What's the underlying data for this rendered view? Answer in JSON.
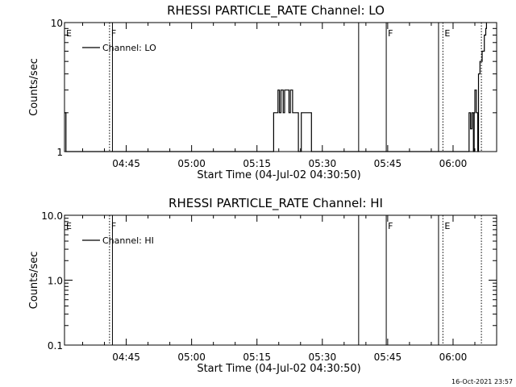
{
  "footer": "16-Oct-2021 23:57",
  "chart_data": [
    {
      "type": "line",
      "title": "RHESSI PARTICLE_RATE Channel: LO",
      "xlabel": "Start Time (04-Jul-02 04:30:50)",
      "ylabel": "Counts/sec",
      "yscale": "log",
      "ylim": [
        1,
        10
      ],
      "yticks": [
        1,
        10
      ],
      "ytick_labels": [
        "1",
        "10"
      ],
      "xlim": [
        "04:30:50",
        "06:10:00"
      ],
      "xticks": [
        "04:45",
        "05:00",
        "05:15",
        "05:30",
        "05:45",
        "06:00"
      ],
      "legend": "Channel: LO",
      "legend_position": "top-left",
      "series": [
        {
          "name": "Channel: LO",
          "points": [
            [
              "04:30:50",
              2
            ],
            [
              "04:31:10",
              1
            ],
            [
              "05:18:40",
              1
            ],
            [
              "05:18:50",
              2
            ],
            [
              "05:19:30",
              2
            ],
            [
              "05:19:50",
              3
            ],
            [
              "05:20:10",
              2
            ],
            [
              "05:20:30",
              3
            ],
            [
              "05:21:00",
              2
            ],
            [
              "05:21:20",
              3
            ],
            [
              "05:22:00",
              3
            ],
            [
              "05:22:20",
              2
            ],
            [
              "05:22:40",
              3
            ],
            [
              "05:23:10",
              2
            ],
            [
              "05:24:10",
              2
            ],
            [
              "05:24:30",
              1
            ],
            [
              "05:25:00",
              1
            ],
            [
              "05:25:10",
              2
            ],
            [
              "05:27:10",
              2
            ],
            [
              "05:27:30",
              1
            ],
            [
              "06:03:30",
              1
            ],
            [
              "06:03:40",
              2
            ],
            [
              "06:04:00",
              1.5
            ],
            [
              "06:04:20",
              2
            ],
            [
              "06:04:40",
              1
            ],
            [
              "06:04:50",
              2
            ],
            [
              "06:05:00",
              3
            ],
            [
              "06:05:20",
              2
            ],
            [
              "06:05:40",
              1
            ],
            [
              "06:05:50",
              4
            ],
            [
              "06:06:10",
              5
            ],
            [
              "06:06:40",
              6
            ],
            [
              "06:07:10",
              8
            ],
            [
              "06:07:30",
              9
            ],
            [
              "06:07:40",
              10
            ]
          ]
        }
      ],
      "markers": [
        {
          "label": "E",
          "time": "04:30:50",
          "style": "none"
        },
        {
          "label": "F",
          "time": "04:41:10",
          "style": "dotted"
        },
        {
          "label": "",
          "time": "04:41:50",
          "style": "solid"
        },
        {
          "label": "",
          "time": "05:38:20",
          "style": "solid"
        },
        {
          "label": "F",
          "time": "05:44:40",
          "style": "solid"
        },
        {
          "label": "",
          "time": "05:56:40",
          "style": "solid"
        },
        {
          "label": "E",
          "time": "05:57:40",
          "style": "dotted"
        },
        {
          "label": "",
          "time": "06:06:30",
          "style": "dotted"
        }
      ]
    },
    {
      "type": "line",
      "title": "RHESSI PARTICLE_RATE Channel: HI",
      "xlabel": "Start Time (04-Jul-02 04:30:50)",
      "ylabel": "Counts/sec",
      "yscale": "log",
      "ylim": [
        0.1,
        10
      ],
      "yticks": [
        0.1,
        1,
        10
      ],
      "ytick_labels": [
        "0.1",
        "1.0",
        "10.0"
      ],
      "xlim": [
        "04:30:50",
        "06:10:00"
      ],
      "xticks": [
        "04:45",
        "05:00",
        "05:15",
        "05:30",
        "05:45",
        "06:00"
      ],
      "legend": "Channel: HI",
      "legend_position": "top-left",
      "series": [
        {
          "name": "Channel: HI",
          "points": []
        }
      ],
      "markers": [
        {
          "label": "E",
          "time": "04:30:50",
          "style": "none"
        },
        {
          "label": "F",
          "time": "04:41:10",
          "style": "dotted"
        },
        {
          "label": "",
          "time": "04:41:50",
          "style": "solid"
        },
        {
          "label": "",
          "time": "05:38:20",
          "style": "solid"
        },
        {
          "label": "F",
          "time": "05:44:40",
          "style": "solid"
        },
        {
          "label": "",
          "time": "05:56:40",
          "style": "solid"
        },
        {
          "label": "E",
          "time": "05:57:40",
          "style": "dotted"
        },
        {
          "label": "",
          "time": "06:06:30",
          "style": "dotted"
        }
      ]
    }
  ]
}
